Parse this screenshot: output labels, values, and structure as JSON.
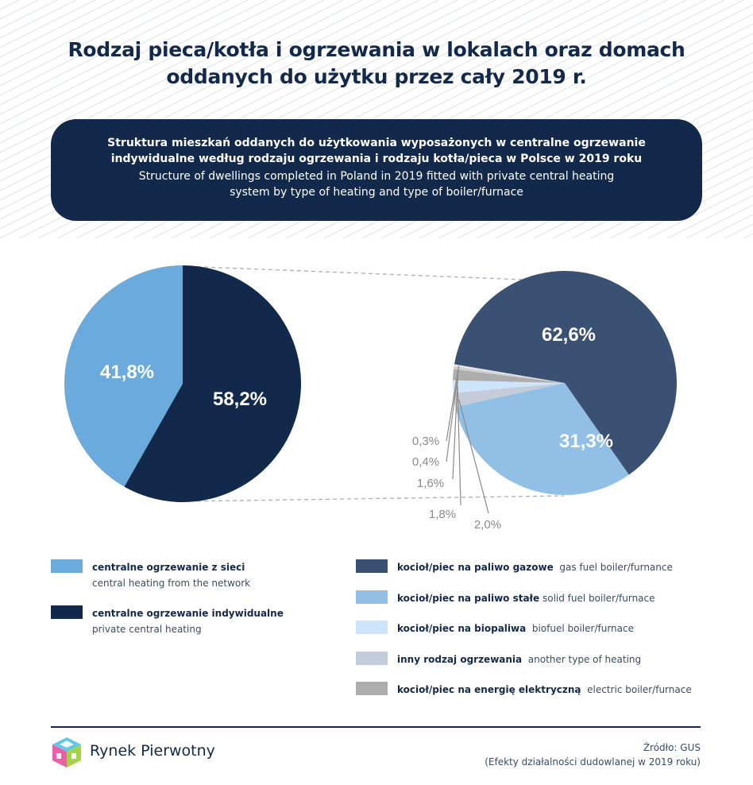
{
  "title": {
    "line1": "Rodzaj pieca/kotła i ogrzewania w lokalach oraz domach",
    "line2": "oddanych do użytku przez cały 2019 r."
  },
  "banner": {
    "pl_line1": "Struktura mieszkań oddanych do użytkowania wyposażonych w centralne ogrzewanie",
    "pl_line2": "indywidualne według rodzaju ogrzewania i rodzaju kotła/pieca w Polsce w 2019 roku",
    "en_line1": "Structure of dwellings completed in Poland in 2019 fitted with private central heating",
    "en_line2": "system by type of heating and type of boiler/furnace"
  },
  "chart_data": [
    {
      "type": "pie",
      "slices": [
        {
          "label_pl": "centralne ogrzewanie z sieci",
          "label_en": "central heating from the network",
          "value": 41.8,
          "display": "41,8%",
          "color": "#6aaadd"
        },
        {
          "label_pl": "centralne ogrzewanie indywidualne",
          "label_en": "private central heating",
          "value": 58.2,
          "display": "58,2%",
          "color": "#13294b"
        }
      ]
    },
    {
      "type": "pie",
      "slices": [
        {
          "label_pl": "kocioł/piec na paliwo gazowe",
          "label_en": "gas fuel boiler/furnance",
          "value": 62.6,
          "display": "62,6%",
          "color": "#3a5173"
        },
        {
          "label_pl": "kocioł/piec na paliwo stałe",
          "label_en": "solid fuel boiler/furnace",
          "value": 31.3,
          "display": "31,3%",
          "color": "#91bfe6"
        },
        {
          "label_pl": "",
          "label_en": "",
          "value": 2.0,
          "display": "2,0%",
          "color": "#c3ccd8"
        },
        {
          "label_pl": "",
          "label_en": "",
          "value": 1.8,
          "display": "1,8%",
          "color": "#cde5fa"
        },
        {
          "label_pl": "",
          "label_en": "",
          "value": 1.6,
          "display": "1,6%",
          "color": "#adadad"
        },
        {
          "label_pl": "",
          "label_en": "",
          "value": 0.4,
          "display": "0,4%",
          "color": "#d0d0d0"
        },
        {
          "label_pl": "",
          "label_en": "",
          "value": 0.3,
          "display": "0,3%",
          "color": "#e4e4e4"
        }
      ]
    }
  ],
  "legend_left": [
    {
      "pl": "centralne ogrzewanie z sieci",
      "en": "central heating from the network",
      "color": "#6aaadd"
    },
    {
      "pl": "centralne ogrzewanie indywidualne",
      "en": "private central heating",
      "color": "#13294b"
    }
  ],
  "legend_right": [
    {
      "pl": "kocioł/piec na paliwo gazowe",
      "en": "gas fuel boiler/furnance",
      "color": "#3a5173"
    },
    {
      "pl": "kocioł/piec na paliwo stałe",
      "en": "solid fuel boiler/furnace",
      "color": "#91bfe6"
    },
    {
      "pl": "kocioł/piec na biopaliwa",
      "en": "biofuel boiler/furnace",
      "color": "#cde5fa"
    },
    {
      "pl": "inny rodzaj ogrzewania",
      "en": "another type of heating",
      "color": "#c3ccd8"
    },
    {
      "pl": "kocioł/piec na energię elektryczną",
      "en": "electric boiler/furnace",
      "color": "#adadad"
    }
  ],
  "footer": {
    "brand": "Rynek Pierwotny",
    "source_line1": "Źródło: GUS",
    "source_line2": "(Efekty działalności dudowlanej w 2019 roku)"
  },
  "colors": {
    "navy": "#13294b",
    "connector": "#a9afb7",
    "label_gray": "#8a8a8a"
  }
}
